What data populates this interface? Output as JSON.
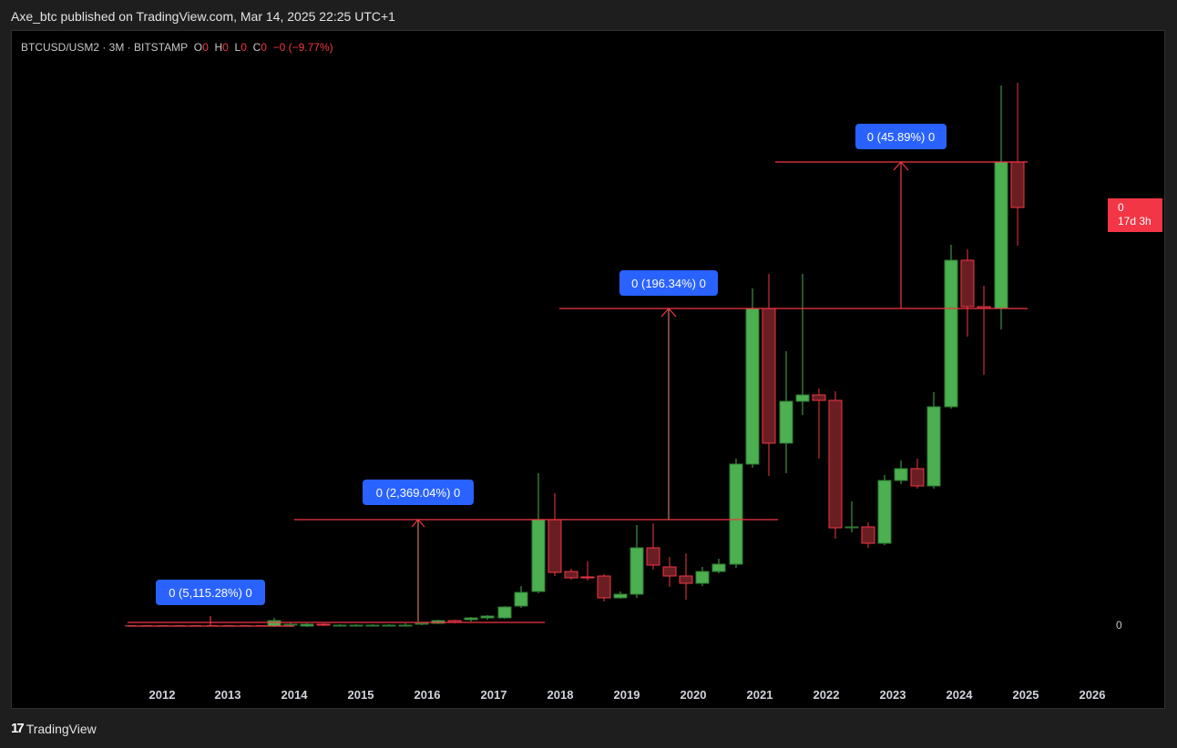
{
  "header": {
    "published": "Axe_btc published on TradingView.com, Mar 14, 2025 22:25 UTC+1"
  },
  "symbol": {
    "name": "BTCUSD/USM2 · 3M · BITSTAMP",
    "o_label": "O",
    "o_value": "0",
    "h_label": "H",
    "h_value": "0",
    "l_label": "L",
    "l_value": "0",
    "c_label": "C",
    "c_value": "0",
    "change": "−0 (−9.77%)"
  },
  "price_axis": {
    "last_value": "0",
    "countdown": "17d 3h",
    "tick_zero": "0"
  },
  "footer": {
    "logo_icon": "tradingview-logo-icon",
    "brand": "TradingView"
  },
  "colors": {
    "up": "#4caf50",
    "down": "#f23645",
    "label_bg": "#2962ff",
    "line": "#f23645"
  },
  "chart_data": {
    "type": "candlestick",
    "x_ticks": [
      "2012",
      "2013",
      "2014",
      "2015",
      "2016",
      "2017",
      "2018",
      "2019",
      "2020",
      "2021",
      "2022",
      "2023",
      "2024",
      "2025",
      "2026"
    ],
    "annotations": [
      {
        "label": "0 (5,115.28%) 0"
      },
      {
        "label": "0 (2,369.04%) 0"
      },
      {
        "label": "0 (196.34%) 0"
      },
      {
        "label": "0 (45.89%) 0"
      }
    ]
  }
}
